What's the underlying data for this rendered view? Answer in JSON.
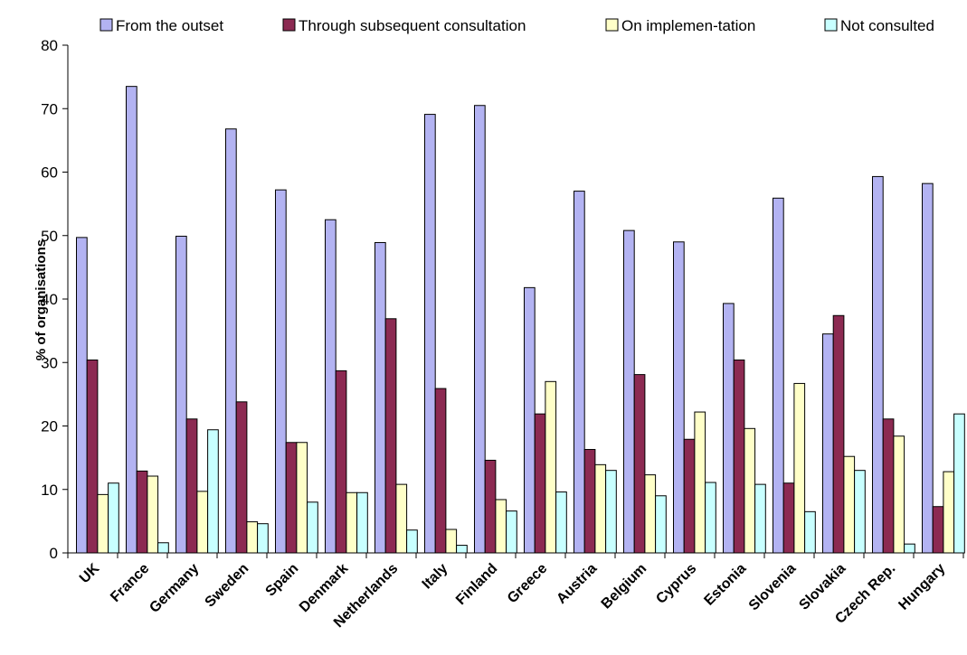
{
  "chart_data": {
    "type": "bar",
    "categories": [
      "UK",
      "France",
      "Germany",
      "Sweden",
      "Spain",
      "Denmark",
      "Netherlands",
      "Italy",
      "Finland",
      "Greece",
      "Austria",
      "Belgium",
      "Cyprus",
      "Estonia",
      "Slovenia",
      "Slovakia",
      "Czech Rep.",
      "Hungary"
    ],
    "series": [
      {
        "name": "From the outset",
        "color": "#b3b3f2",
        "values": [
          49.7,
          73.5,
          49.9,
          66.8,
          57.2,
          52.5,
          48.9,
          69.1,
          70.5,
          41.8,
          57.0,
          50.8,
          49.0,
          39.3,
          55.9,
          34.5,
          59.3,
          58.2
        ]
      },
      {
        "name": "Through subsequent consultation",
        "color": "#8c2a52",
        "values": [
          30.4,
          12.9,
          21.1,
          23.8,
          17.4,
          28.7,
          36.9,
          25.9,
          14.6,
          21.9,
          16.3,
          28.1,
          17.9,
          30.4,
          11.0,
          37.4,
          21.1,
          7.3
        ]
      },
      {
        "name": "On implemen-tation",
        "color": "#ffffc8",
        "values": [
          9.2,
          12.1,
          9.7,
          4.9,
          17.4,
          9.5,
          10.8,
          3.7,
          8.4,
          27.0,
          13.9,
          12.3,
          22.2,
          19.6,
          26.7,
          15.2,
          18.4,
          12.8
        ]
      },
      {
        "name": "Not consulted",
        "color": "#c8ffff",
        "values": [
          11.0,
          1.6,
          19.4,
          4.6,
          8.0,
          9.5,
          3.6,
          1.2,
          6.6,
          9.6,
          13.0,
          9.0,
          11.1,
          10.8,
          6.5,
          13.0,
          1.4,
          21.9
        ]
      }
    ],
    "xlabel": "",
    "ylabel": "% of organisations",
    "ylim": [
      0,
      80
    ],
    "yticks": [
      0,
      10,
      20,
      30,
      40,
      50,
      60,
      70,
      80
    ],
    "grid": false,
    "legend_position": "top"
  }
}
